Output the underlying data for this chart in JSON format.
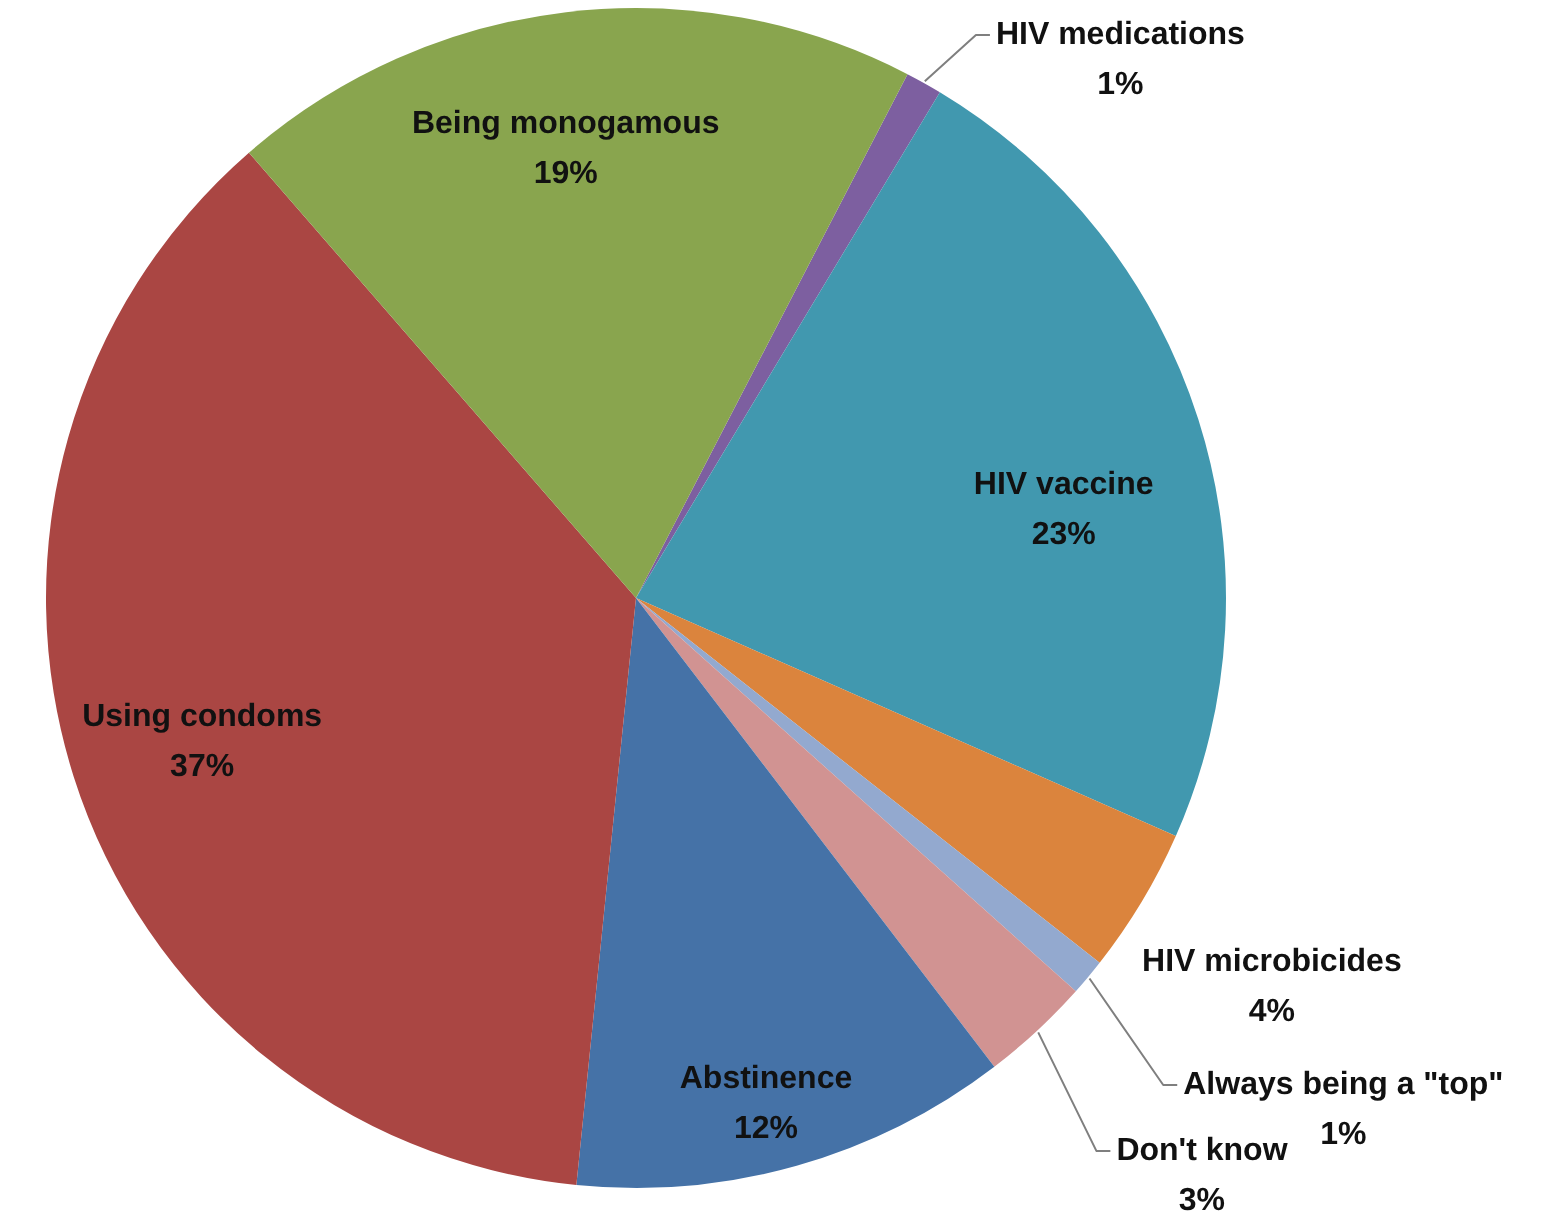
{
  "chart_data": {
    "type": "pie",
    "categories": [
      "HIV medications",
      "HIV vaccine",
      "HIV microbicides",
      "Always being a \"top\"",
      "Don't know",
      "Abstinence",
      "Using condoms",
      "Being monogamous"
    ],
    "values": [
      1,
      23,
      4,
      1,
      3,
      12,
      37,
      19
    ],
    "colors": [
      "#7d5fa0",
      "#4198af",
      "#db843d",
      "#93a9cf",
      "#d19392",
      "#4572a7",
      "#aa4643",
      "#89a54e"
    ],
    "value_labels": [
      "1%",
      "23%",
      "4%",
      "1%",
      "3%",
      "12%",
      "37%",
      "19%"
    ],
    "legend": false
  }
}
